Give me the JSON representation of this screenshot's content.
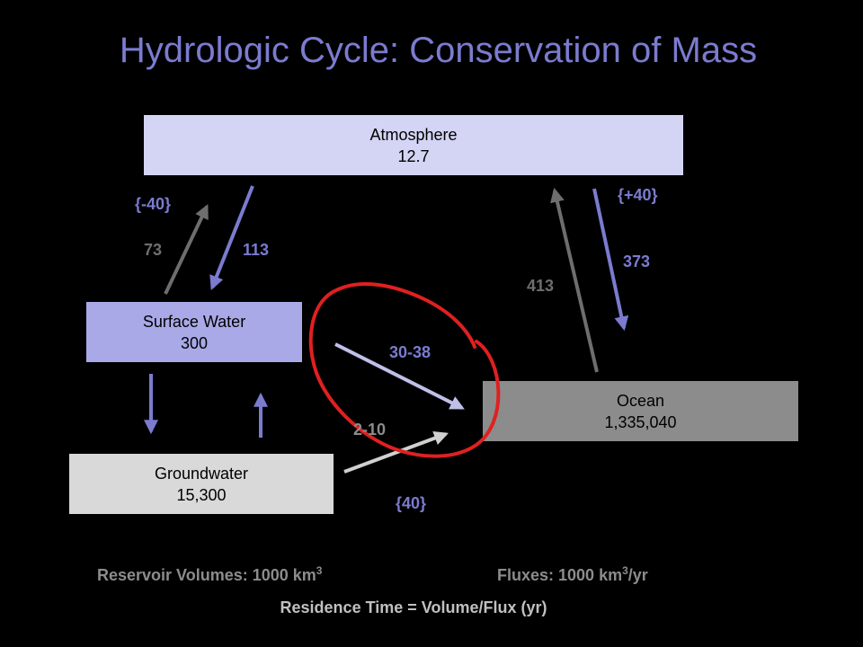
{
  "title": "Hydrologic Cycle: Conservation of Mass",
  "reservoirs": {
    "atmosphere": {
      "name": "Atmosphere",
      "volume": "12.7"
    },
    "surface_water": {
      "name": "Surface Water",
      "volume": "300"
    },
    "groundwater": {
      "name": "Groundwater",
      "volume": "15,300"
    },
    "ocean": {
      "name": "Ocean",
      "volume": "1,335,040"
    }
  },
  "fluxes": {
    "surface_to_atm": "73",
    "atm_to_surface": "113",
    "land_balance": "{-40}",
    "ocean_to_atm": "413",
    "atm_to_ocean": "373",
    "ocean_balance": "{+40}",
    "surface_to_ocean": "30-38",
    "ground_to_ocean": "2-10",
    "runoff_total": "{40}"
  },
  "footer": {
    "reservoir_label": "Reservoir Volumes: 1000 km",
    "reservoir_sup": "3",
    "flux_label": "Fluxes: 1000 km",
    "flux_sup": "3",
    "flux_suffix": "/yr",
    "residence": "Residence Time = Volume/Flux (yr)"
  },
  "colors": {
    "title": "#7b7bd0",
    "blue_flux": "#7b7bd0",
    "gray_flux": "#6e6e6e",
    "light_flux": "#bfbfe8",
    "annotation": "#e02020"
  }
}
